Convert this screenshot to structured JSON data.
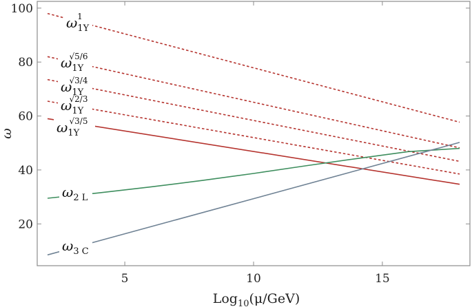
{
  "chart_data": {
    "type": "line",
    "title": "",
    "xlabel": "Log10(μ/GeV)",
    "xlabel_parts": {
      "main": "Log",
      "sub": "10",
      "rest": "(μ/GeV)"
    },
    "ylabel": "ω",
    "xlim": [
      1.6,
      18.4
    ],
    "ylim": [
      4.5,
      102.5
    ],
    "x_ticks": [
      5,
      10,
      15
    ],
    "y_ticks": [
      20,
      40,
      60,
      80,
      100
    ],
    "grid": false,
    "colors": {
      "red": "#b5332e",
      "green": "#3e8e5e",
      "slate": "#6f8294",
      "frame": "#8c8c8c"
    },
    "series": [
      {
        "label": {
          "base": "ω",
          "sub": "1Y",
          "sup": "1"
        },
        "style": "dashed",
        "color": "#b5332e",
        "x": [
          2,
          18
        ],
        "y": [
          98,
          57.7
        ]
      },
      {
        "label": {
          "base": "ω",
          "sub": "1Y",
          "sup": "√5/6"
        },
        "style": "dashed",
        "color": "#b5332e",
        "x": [
          2,
          18
        ],
        "y": [
          82,
          48.2
        ]
      },
      {
        "label": {
          "base": "ω",
          "sub": "1Y",
          "sup": "√3/4"
        },
        "style": "dashed",
        "color": "#b5332e",
        "x": [
          2,
          18
        ],
        "y": [
          73.5,
          43.2
        ]
      },
      {
        "label": {
          "base": "ω",
          "sub": "1Y",
          "sup": "√2/3"
        },
        "style": "dashed",
        "color": "#b5332e",
        "x": [
          2,
          18
        ],
        "y": [
          65.5,
          38.5
        ]
      },
      {
        "label": {
          "base": "ω",
          "sub": "1Y",
          "sup": "√3/5"
        },
        "style": "solid",
        "color": "#b5332e",
        "x": [
          2,
          18
        ],
        "y": [
          59,
          34.7
        ]
      },
      {
        "label": {
          "base": "ω",
          "sub": "2 L",
          "sup": ""
        },
        "style": "solid",
        "color": "#3e8e5e",
        "x": [
          2,
          4,
          6,
          8,
          10,
          12,
          14,
          16,
          18
        ],
        "y": [
          29.5,
          31.5,
          33.7,
          36.1,
          38.7,
          41.5,
          44.2,
          46.8,
          48.0
        ]
      },
      {
        "label": {
          "base": "ω",
          "sub": "3 C",
          "sup": ""
        },
        "style": "solid",
        "color": "#6f8294",
        "x": [
          2,
          18
        ],
        "y": [
          8.5,
          50.2
        ]
      }
    ]
  }
}
